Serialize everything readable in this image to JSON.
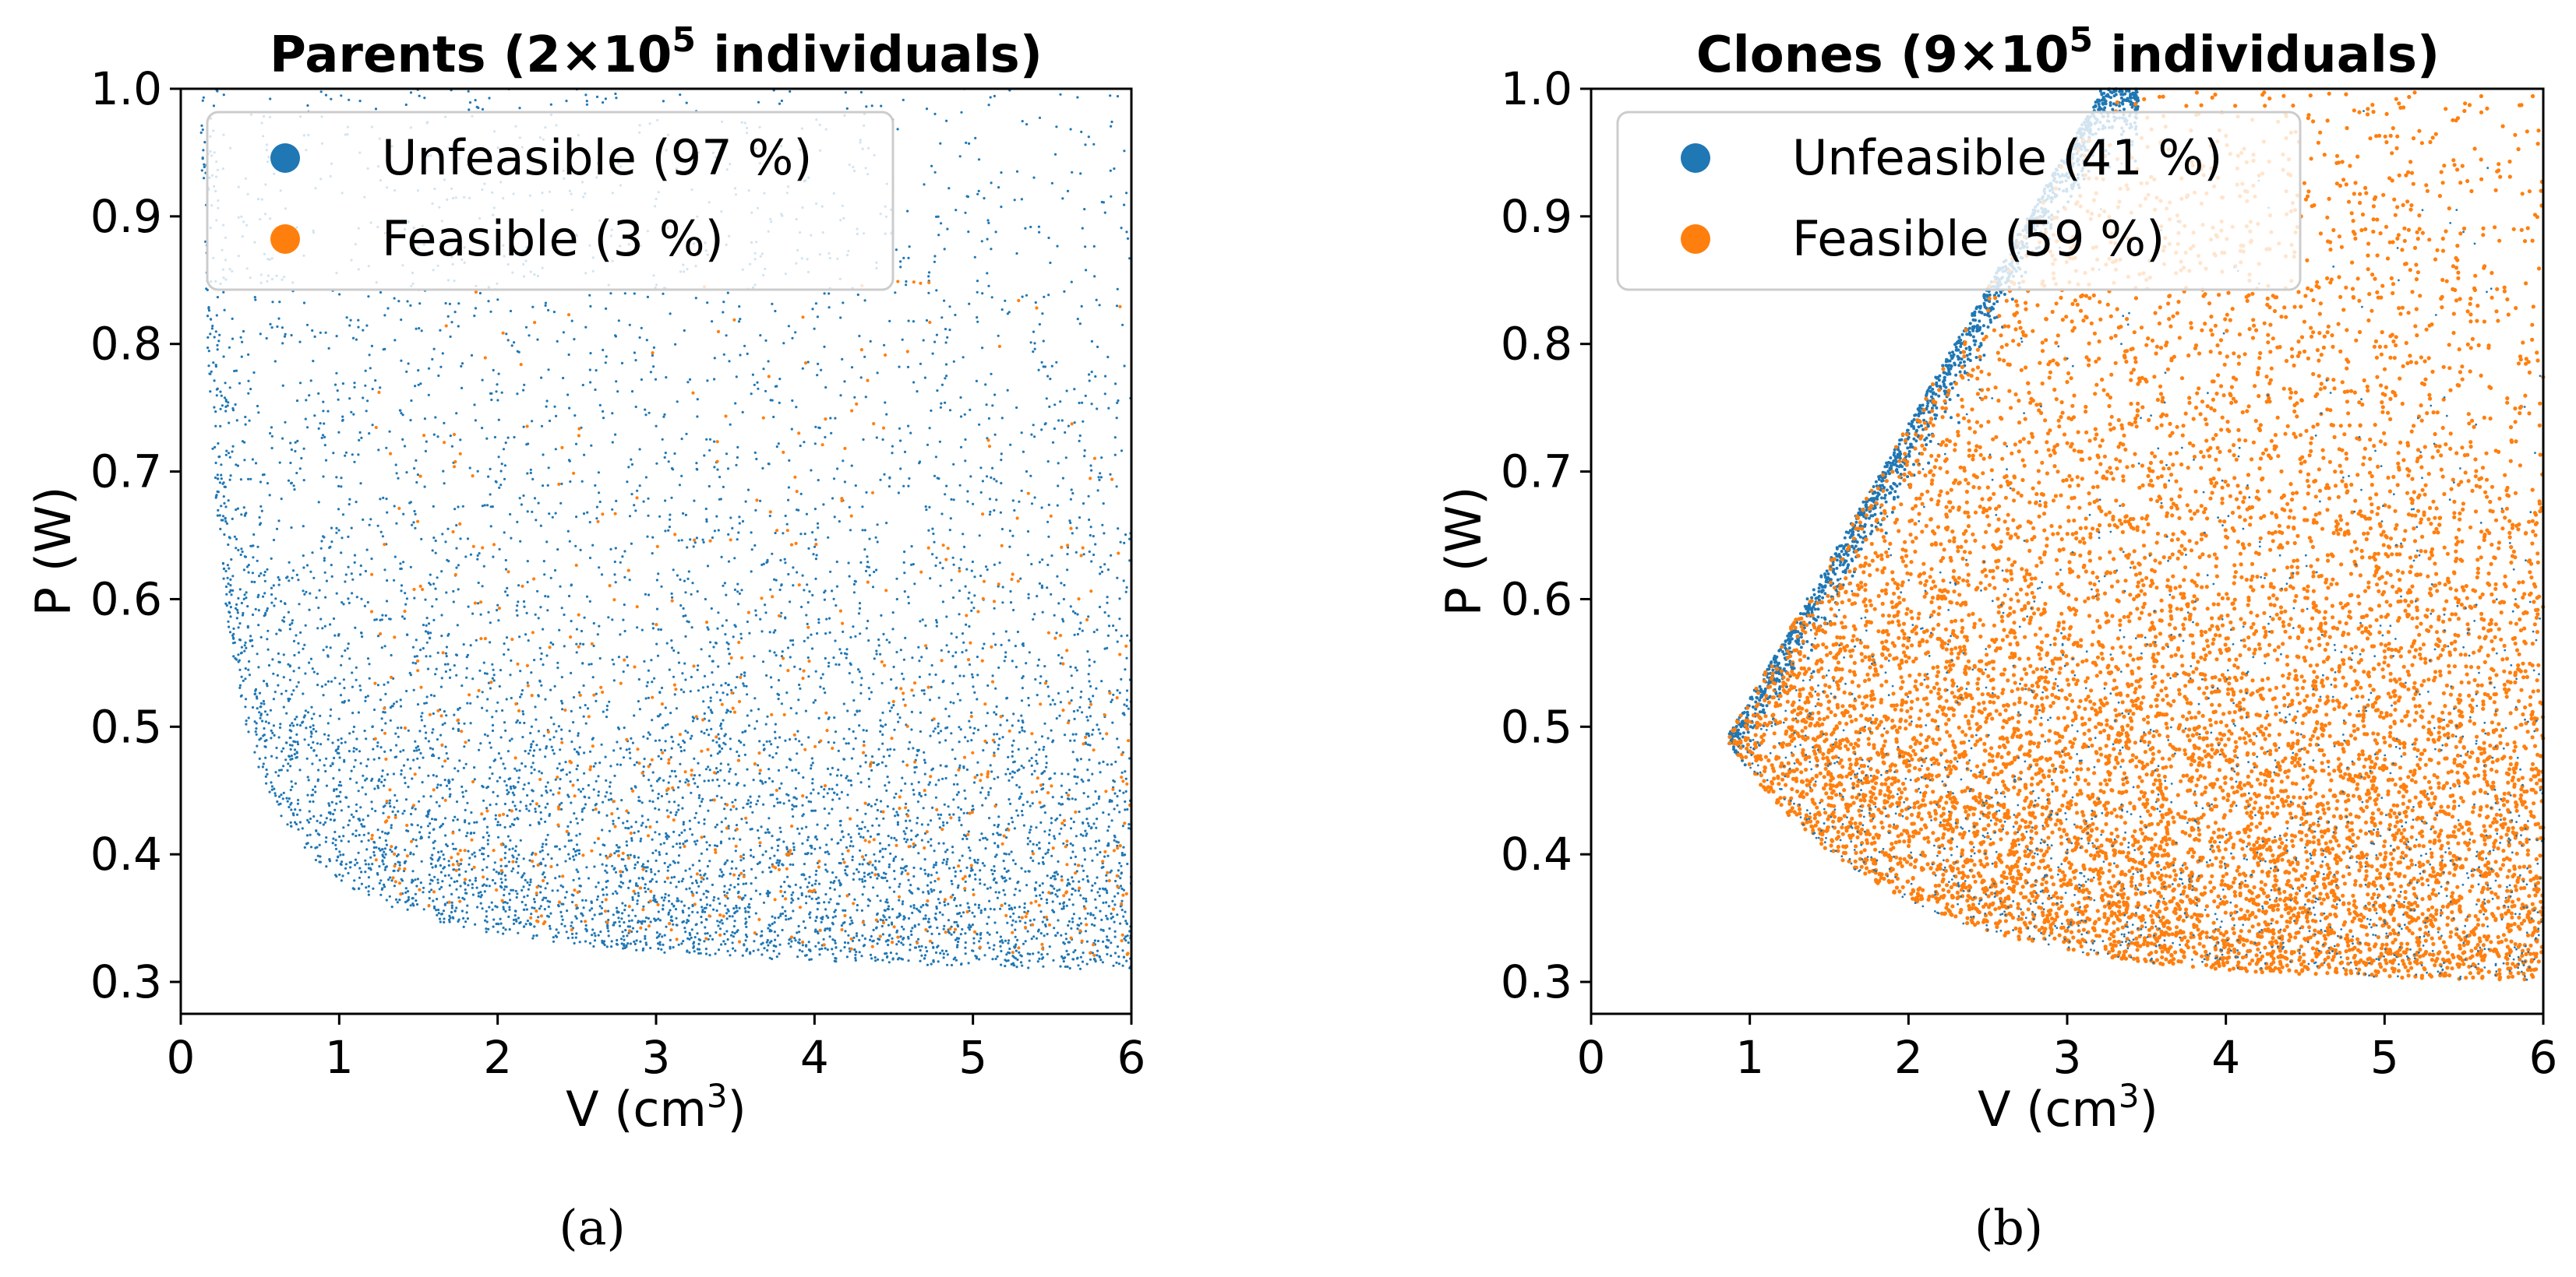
{
  "colors": {
    "unfeasible": "#1f77b4",
    "feasible": "#ff7f0e",
    "axis": "#000000"
  },
  "chart_data": [
    {
      "type": "scatter",
      "panel_label": "(a)",
      "title_main": "Parents (2×10",
      "title_sup": "5",
      "title_tail": " individuals)",
      "xlabel": "V (cm",
      "xlabel_sup": "3",
      "xlabel_tail": ")",
      "ylabel": "P (W)",
      "xlim": [
        0,
        6
      ],
      "ylim": [
        0.275,
        1.0
      ],
      "xticks": [
        0,
        1,
        2,
        3,
        4,
        5,
        6
      ],
      "yticks": [
        0.3,
        0.4,
        0.5,
        0.6,
        0.7,
        0.8,
        0.9,
        1.0
      ],
      "legend": {
        "position": "top-left",
        "entries": [
          {
            "label": "Unfeasible (97 %)",
            "series": "Unfeasible"
          },
          {
            "label": "Feasible (3 %)",
            "series": "Feasible"
          }
        ]
      },
      "series": [
        {
          "name": "Unfeasible",
          "share_percent": 97,
          "region": "points with P above approx 0.30 + 0.09/V, concentrated near the frontier, sparse toward upper right"
        },
        {
          "name": "Feasible",
          "share_percent": 3,
          "region": "sparse points for V between approx 1.3 and 6, P between approx 0.31 and 0.8"
        }
      ]
    },
    {
      "type": "scatter",
      "panel_label": "(b)",
      "title_main": "Clones (9×10",
      "title_sup": "5",
      "title_tail": " individuals)",
      "xlabel": "V (cm",
      "xlabel_sup": "3",
      "xlabel_tail": ")",
      "ylabel": "P (W)",
      "xlim": [
        0,
        6
      ],
      "ylim": [
        0.275,
        1.0
      ],
      "xticks": [
        0,
        1,
        2,
        3,
        4,
        5,
        6
      ],
      "yticks": [
        0.3,
        0.4,
        0.5,
        0.6,
        0.7,
        0.8,
        0.9,
        1.0
      ],
      "legend": {
        "position": "top-left",
        "entries": [
          {
            "label": "Unfeasible (41 %)",
            "series": "Unfeasible"
          },
          {
            "label": "Feasible (59 %)",
            "series": "Feasible"
          }
        ]
      },
      "series": [
        {
          "name": "Unfeasible",
          "share_percent": 41,
          "region": "fan-shaped cloud starting at approx (0.85, 0.49), spreading to V=6 with P from approx 0.30 up to 1.0; visible along left edge and mixed in"
        },
        {
          "name": "Feasible",
          "share_percent": 59,
          "region": "dense fan-shaped cloud from approx (0.9, 0.49) to V=6, P from approx 0.30 to 1.0, dominant over most of the region"
        }
      ]
    }
  ]
}
